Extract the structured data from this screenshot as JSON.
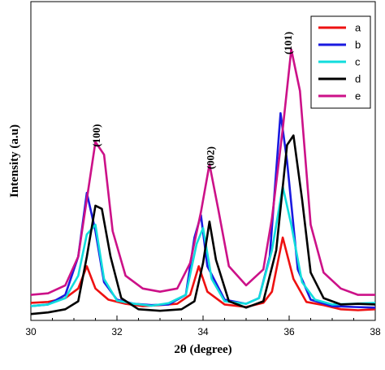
{
  "chart_data": {
    "type": "line",
    "title": "",
    "xlabel": "2θ (degree)",
    "ylabel": "Intensity (a.u)",
    "xlim": [
      30,
      38
    ],
    "ylim": [
      0,
      100
    ],
    "x_ticks": [
      30,
      32,
      34,
      36,
      38
    ],
    "y_ticks_shown": false,
    "grid": false,
    "legend_position": "top-right",
    "annotations": [
      {
        "text": "(100)",
        "x": 31.55,
        "y": 58
      },
      {
        "text": "(002)",
        "x": 34.2,
        "y": 51
      },
      {
        "text": "(101)",
        "x": 36.0,
        "y": 87
      }
    ],
    "series": [
      {
        "name": "a",
        "color": "#ee1111",
        "points": [
          [
            30,
            5.5
          ],
          [
            30.4,
            5.8
          ],
          [
            30.8,
            7
          ],
          [
            31.1,
            10
          ],
          [
            31.3,
            17
          ],
          [
            31.5,
            10
          ],
          [
            31.8,
            6.5
          ],
          [
            32.2,
            5.2
          ],
          [
            32.6,
            4.5
          ],
          [
            33,
            4.8
          ],
          [
            33.4,
            5.2
          ],
          [
            33.7,
            8
          ],
          [
            33.9,
            17
          ],
          [
            34.1,
            9
          ],
          [
            34.5,
            5
          ],
          [
            35,
            4.2
          ],
          [
            35.4,
            5.5
          ],
          [
            35.6,
            9
          ],
          [
            35.85,
            26
          ],
          [
            36.1,
            13
          ],
          [
            36.4,
            5.8
          ],
          [
            36.8,
            4.8
          ],
          [
            37.2,
            3.5
          ],
          [
            37.6,
            3.2
          ],
          [
            38,
            3.5
          ]
        ]
      },
      {
        "name": "b",
        "color": "#1a1ae0",
        "points": [
          [
            30,
            4.5
          ],
          [
            30.4,
            5
          ],
          [
            30.8,
            8
          ],
          [
            31.1,
            20
          ],
          [
            31.3,
            40
          ],
          [
            31.5,
            28
          ],
          [
            31.7,
            12
          ],
          [
            32,
            6.5
          ],
          [
            32.4,
            5.2
          ],
          [
            32.8,
            4.8
          ],
          [
            33.2,
            5
          ],
          [
            33.6,
            8
          ],
          [
            33.8,
            26
          ],
          [
            33.95,
            33
          ],
          [
            34.1,
            17
          ],
          [
            34.5,
            6.5
          ],
          [
            35,
            5.2
          ],
          [
            35.3,
            7
          ],
          [
            35.55,
            20
          ],
          [
            35.8,
            65
          ],
          [
            35.95,
            50
          ],
          [
            36.2,
            16
          ],
          [
            36.5,
            6.5
          ],
          [
            37,
            4.5
          ],
          [
            37.5,
            4.2
          ],
          [
            38,
            4
          ]
        ]
      },
      {
        "name": "c",
        "color": "#11dddd",
        "points": [
          [
            30,
            4.5
          ],
          [
            30.4,
            5
          ],
          [
            30.8,
            7
          ],
          [
            31.1,
            14
          ],
          [
            31.3,
            27
          ],
          [
            31.5,
            30
          ],
          [
            31.7,
            13
          ],
          [
            32,
            6.2
          ],
          [
            32.4,
            5.2
          ],
          [
            32.8,
            4.6
          ],
          [
            33.2,
            5.4
          ],
          [
            33.6,
            8
          ],
          [
            33.85,
            24
          ],
          [
            34,
            29
          ],
          [
            34.2,
            13
          ],
          [
            34.5,
            6
          ],
          [
            35,
            5.2
          ],
          [
            35.3,
            7
          ],
          [
            35.6,
            22
          ],
          [
            35.85,
            42
          ],
          [
            36.05,
            30
          ],
          [
            36.3,
            12
          ],
          [
            36.6,
            6.5
          ],
          [
            37,
            5
          ],
          [
            37.5,
            5.2
          ],
          [
            38,
            5.5
          ]
        ]
      },
      {
        "name": "d",
        "color": "#000000",
        "points": [
          [
            30,
            2
          ],
          [
            30.4,
            2.5
          ],
          [
            30.8,
            3.5
          ],
          [
            31.1,
            6
          ],
          [
            31.3,
            20
          ],
          [
            31.5,
            36
          ],
          [
            31.65,
            35
          ],
          [
            31.85,
            20
          ],
          [
            32.1,
            7
          ],
          [
            32.5,
            3.5
          ],
          [
            33,
            3
          ],
          [
            33.5,
            3.5
          ],
          [
            33.8,
            6
          ],
          [
            34,
            18
          ],
          [
            34.15,
            31
          ],
          [
            34.3,
            19
          ],
          [
            34.6,
            6
          ],
          [
            35,
            4
          ],
          [
            35.4,
            6
          ],
          [
            35.7,
            22
          ],
          [
            35.95,
            55
          ],
          [
            36.1,
            58
          ],
          [
            36.3,
            38
          ],
          [
            36.5,
            15
          ],
          [
            36.8,
            7
          ],
          [
            37.2,
            5
          ],
          [
            37.6,
            5.2
          ],
          [
            38,
            5
          ]
        ]
      },
      {
        "name": "e",
        "color": "#cc1188",
        "points": [
          [
            30,
            8
          ],
          [
            30.4,
            8.5
          ],
          [
            30.8,
            11
          ],
          [
            31.1,
            20
          ],
          [
            31.3,
            38
          ],
          [
            31.5,
            56
          ],
          [
            31.7,
            52
          ],
          [
            31.9,
            28
          ],
          [
            32.2,
            14
          ],
          [
            32.6,
            10
          ],
          [
            33,
            9
          ],
          [
            33.4,
            10
          ],
          [
            33.7,
            18
          ],
          [
            33.95,
            34
          ],
          [
            34.15,
            49
          ],
          [
            34.35,
            35
          ],
          [
            34.6,
            17
          ],
          [
            35,
            11
          ],
          [
            35.4,
            16
          ],
          [
            35.6,
            32
          ],
          [
            35.85,
            60
          ],
          [
            36.05,
            85
          ],
          [
            36.25,
            72
          ],
          [
            36.5,
            30
          ],
          [
            36.8,
            15
          ],
          [
            37.2,
            10
          ],
          [
            37.6,
            8
          ],
          [
            38,
            8
          ]
        ]
      }
    ]
  }
}
